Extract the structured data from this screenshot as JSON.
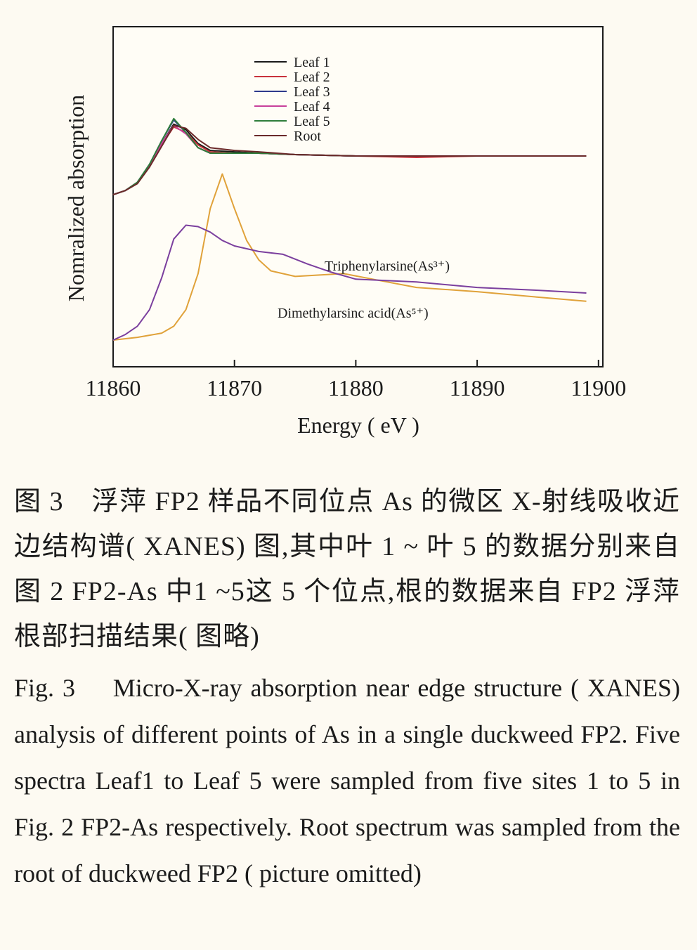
{
  "chart_data": {
    "type": "line",
    "xlabel": "Energy ( eV )",
    "ylabel": "Nomralized  absorption",
    "xlim": [
      11860,
      11900
    ],
    "x_ticks": [
      "11860",
      "11870",
      "11880",
      "11890",
      "11900"
    ],
    "y_ticks_shown": false,
    "grid": false,
    "legend_position": "top-left",
    "y_units": "normalized absorption (arbitrary, offset)",
    "series": [
      {
        "name": "Leaf 1",
        "color": "#1a1a1a",
        "x": [
          11860,
          11861,
          11862,
          11863,
          11864,
          11865,
          11866,
          11867,
          11868,
          11870,
          11872,
          11875,
          11880,
          11885,
          11890,
          11895,
          11899
        ],
        "y": [
          1.05,
          1.08,
          1.14,
          1.26,
          1.42,
          1.56,
          1.52,
          1.42,
          1.37,
          1.36,
          1.35,
          1.34,
          1.33,
          1.33,
          1.33,
          1.33,
          1.33
        ]
      },
      {
        "name": "Leaf 2",
        "color": "#c8323c",
        "x": [
          11860,
          11861,
          11862,
          11863,
          11864,
          11865,
          11866,
          11867,
          11868,
          11870,
          11872,
          11875,
          11880,
          11885,
          11890,
          11895,
          11899
        ],
        "y": [
          1.05,
          1.08,
          1.14,
          1.26,
          1.41,
          1.54,
          1.5,
          1.41,
          1.36,
          1.35,
          1.35,
          1.34,
          1.33,
          1.32,
          1.33,
          1.33,
          1.33
        ]
      },
      {
        "name": "Leaf 3",
        "color": "#2e3a8c",
        "x": [
          11860,
          11861,
          11862,
          11863,
          11864,
          11865,
          11866,
          11867,
          11868,
          11870,
          11872,
          11875,
          11880,
          11885,
          11890,
          11895,
          11899
        ],
        "y": [
          1.05,
          1.08,
          1.14,
          1.27,
          1.44,
          1.59,
          1.5,
          1.39,
          1.35,
          1.35,
          1.35,
          1.34,
          1.33,
          1.33,
          1.33,
          1.33,
          1.33
        ]
      },
      {
        "name": "Leaf 4",
        "color": "#c8409a",
        "x": [
          11860,
          11861,
          11862,
          11863,
          11864,
          11865,
          11866,
          11867,
          11868,
          11870,
          11872,
          11875,
          11880,
          11885,
          11890,
          11895,
          11899
        ],
        "y": [
          1.05,
          1.08,
          1.14,
          1.26,
          1.42,
          1.55,
          1.49,
          1.39,
          1.35,
          1.35,
          1.35,
          1.34,
          1.33,
          1.33,
          1.33,
          1.33,
          1.33
        ]
      },
      {
        "name": "Leaf 5",
        "color": "#2e7d3a",
        "x": [
          11860,
          11861,
          11862,
          11863,
          11864,
          11865,
          11866,
          11867,
          11868,
          11870,
          11872,
          11875,
          11880,
          11885,
          11890,
          11895,
          11899
        ],
        "y": [
          1.05,
          1.08,
          1.14,
          1.27,
          1.44,
          1.6,
          1.5,
          1.39,
          1.35,
          1.35,
          1.35,
          1.34,
          1.33,
          1.33,
          1.33,
          1.33,
          1.33
        ]
      },
      {
        "name": "Root",
        "color": "#6b2a2a",
        "x": [
          11860,
          11861,
          11862,
          11863,
          11864,
          11865,
          11866,
          11867,
          11868,
          11870,
          11872,
          11875,
          11880,
          11885,
          11890,
          11895,
          11899
        ],
        "y": [
          1.05,
          1.08,
          1.13,
          1.25,
          1.4,
          1.55,
          1.53,
          1.45,
          1.39,
          1.37,
          1.36,
          1.34,
          1.33,
          1.33,
          1.33,
          1.33,
          1.33
        ]
      },
      {
        "name": "Triphenylarsine(As³⁺)",
        "color": "#e0a23a",
        "x": [
          11860,
          11862,
          11864,
          11865,
          11866,
          11867,
          11868,
          11869,
          11870,
          11871,
          11872,
          11873,
          11875,
          11877,
          11879,
          11882,
          11885,
          11890,
          11895,
          11899
        ],
        "y": [
          0.0,
          0.02,
          0.05,
          0.1,
          0.22,
          0.48,
          0.95,
          1.2,
          0.95,
          0.72,
          0.58,
          0.5,
          0.46,
          0.47,
          0.48,
          0.43,
          0.38,
          0.35,
          0.31,
          0.28
        ]
      },
      {
        "name": "Dimethylarsinc acid(As⁵⁺)",
        "color": "#7b3f9e",
        "x": [
          11860,
          11861,
          11862,
          11863,
          11864,
          11865,
          11866,
          11867,
          11868,
          11869,
          11870,
          11872,
          11874,
          11876,
          11878,
          11880,
          11885,
          11890,
          11895,
          11899
        ],
        "y": [
          0.0,
          0.04,
          0.1,
          0.22,
          0.45,
          0.73,
          0.83,
          0.82,
          0.78,
          0.72,
          0.68,
          0.64,
          0.62,
          0.55,
          0.49,
          0.44,
          0.42,
          0.38,
          0.36,
          0.34
        ]
      }
    ]
  },
  "annotations": {
    "triphenylarsine": "Triphenylarsine(As³⁺)",
    "dimethylarsinc": "Dimethylarsinc acid(As⁵⁺)"
  },
  "caption": {
    "chinese": "图 3　浮萍 FP2 样品不同位点 As 的微区 X-射线吸收近边结构谱( XANES) 图,其中叶 1 ~ 叶 5 的数据分别来自图 2 FP2-As 中1 ~5这 5 个位点,根的数据来自 FP2 浮萍根部扫描结果( 图略)",
    "english": "Fig. 3　 Micro-X-ray absorption near edge structure ( XANES) analysis of different points of As in a single duckweed FP2. Five spectra Leaf1 to Leaf 5 were sampled from five sites 1 to 5 in Fig. 2 FP2-As respectively. Root spectrum was sampled from the root of duckweed FP2 ( picture omitted)"
  }
}
